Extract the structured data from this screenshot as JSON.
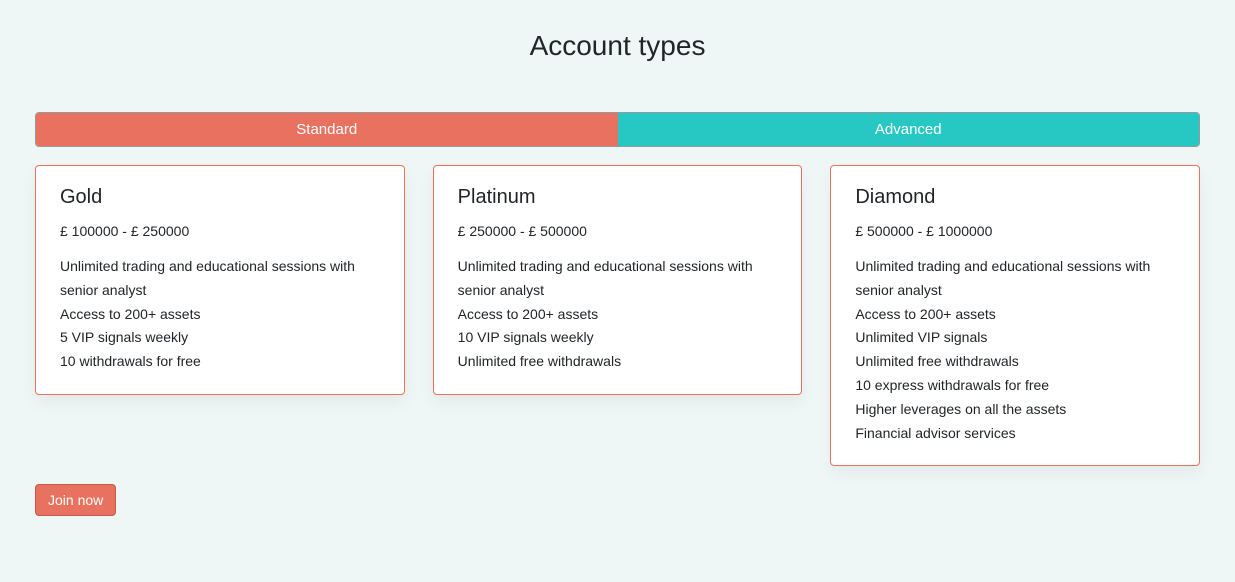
{
  "title": "Account types",
  "tabs": {
    "standard": {
      "label": "Standard",
      "bg": "#e8725f"
    },
    "advanced": {
      "label": "Advanced",
      "bg": "#27c7c4"
    }
  },
  "cards": [
    {
      "name": "Gold",
      "price": "£ 100000 - £ 250000",
      "features": [
        "Unlimited trading and educational sessions with senior analyst",
        "Access to 200+ assets",
        "5 VIP signals weekly",
        "10 withdrawals for free"
      ]
    },
    {
      "name": "Platinum",
      "price": "£ 250000 - £ 500000",
      "features": [
        "Unlimited trading and educational sessions with senior analyst",
        "Access to 200+ assets",
        "10 VIP signals weekly",
        "Unlimited free withdrawals"
      ]
    },
    {
      "name": "Diamond",
      "price": "£ 500000 - £ 1000000",
      "features": [
        "Unlimited trading and educational sessions with senior analyst",
        "Access to 200+ assets",
        "Unlimited VIP signals",
        "Unlimited free withdrawals",
        "10 express withdrawals for free",
        "Higher leverages on all the assets",
        "Financial advisor services"
      ]
    }
  ],
  "joinButton": {
    "label": "Join now"
  },
  "colors": {
    "page_bg": "#eef7f6",
    "card_border": "#e8725f",
    "card_bg": "#ffffff",
    "text": "#212529",
    "btn_bg": "#e8725f",
    "btn_border": "#c45a4a"
  }
}
